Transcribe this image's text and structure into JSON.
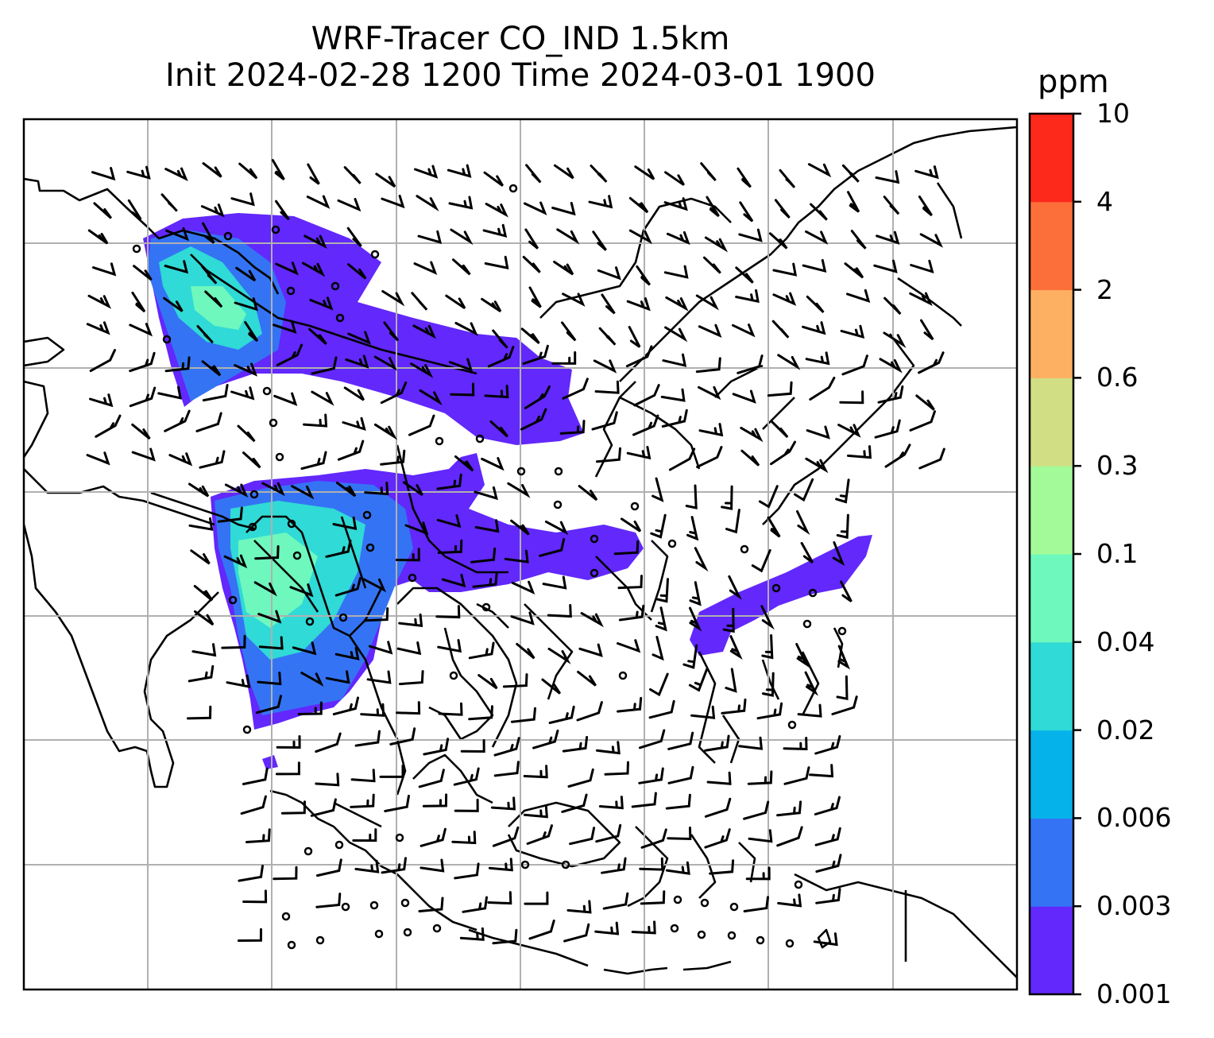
{
  "title": {
    "line1": "WRF-Tracer CO_IND 1.5km",
    "line2": "Init 2024-02-28 1200 Time 2024-03-01 1900"
  },
  "colorbar": {
    "unit": "ppm",
    "levels": [
      "0.001",
      "0.003",
      "0.006",
      "0.02",
      "0.04",
      "0.1",
      "0.3",
      "0.6",
      "2",
      "4",
      "10"
    ],
    "colors": [
      "#6228fc",
      "#3474f4",
      "#05b2ea",
      "#30dad6",
      "#6ef8bd",
      "#a2fb98",
      "#d2de84",
      "#fdb062",
      "#fd6f3a",
      "#fd291b"
    ]
  },
  "map": {
    "gridlines": true,
    "plume_colors": {
      "faint": "#6228fc",
      "low": "#3474f4",
      "mid": "#30dad6",
      "high": "#6ef8bd",
      "peak": "#a2fb98"
    },
    "line_color": "#000000",
    "grid_color": "#b0b0b0"
  }
}
